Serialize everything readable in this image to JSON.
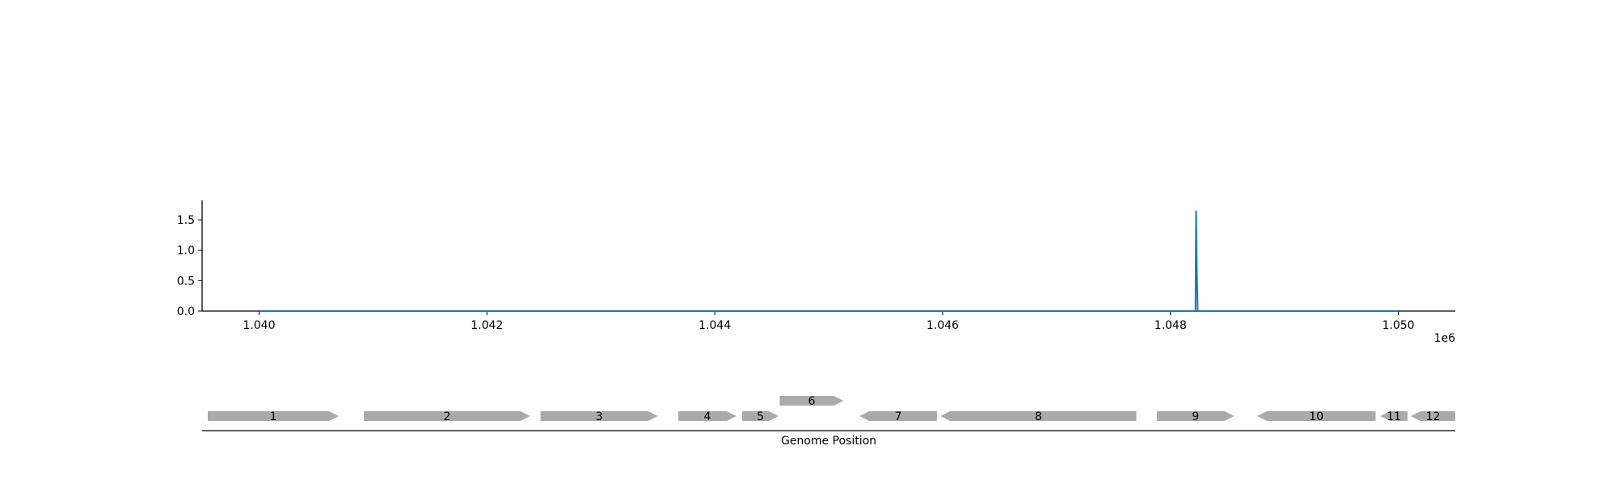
{
  "chart_data": [
    {
      "type": "line",
      "title": "",
      "xlabel": "",
      "ylabel": "",
      "x_offset_label": "1e6",
      "xlim": [
        1039500,
        1050500
      ],
      "ylim": [
        0,
        1.82
      ],
      "xticks": [
        1040000,
        1042000,
        1044000,
        1046000,
        1048000,
        1050000
      ],
      "xtick_labels": [
        "1.040",
        "1.042",
        "1.044",
        "1.046",
        "1.048",
        "1.050"
      ],
      "yticks": [
        0.0,
        0.5,
        1.0,
        1.5
      ],
      "ytick_labels": [
        "0.0",
        "0.5",
        "1.0",
        "1.5"
      ],
      "grid": false,
      "series": [
        {
          "color": "#1f77b4",
          "x": [
            1040000,
            1048220,
            1048225,
            1048230,
            1048235,
            1048240,
            1050000
          ],
          "y": [
            0,
            0,
            1.65,
            0.9,
            0.4,
            0,
            0
          ]
        }
      ]
    },
    {
      "type": "gene_map",
      "xlabel": "Genome Position",
      "gene_color": "#aaaaaa",
      "genes": [
        {
          "label": "1",
          "start": 1039550,
          "end": 1040700,
          "strand": "+",
          "row": 0
        },
        {
          "label": "2",
          "start": 1040920,
          "end": 1042380,
          "strand": "+",
          "row": 0
        },
        {
          "label": "3",
          "start": 1042470,
          "end": 1043500,
          "strand": "+",
          "row": 0
        },
        {
          "label": "4",
          "start": 1043680,
          "end": 1044190,
          "strand": "+",
          "row": 0
        },
        {
          "label": "5",
          "start": 1044240,
          "end": 1044560,
          "strand": "+",
          "row": 0
        },
        {
          "label": "6",
          "start": 1044570,
          "end": 1045130,
          "strand": "+",
          "row": 1
        },
        {
          "label": "7",
          "start": 1045270,
          "end": 1045950,
          "strand": "-",
          "row": 0
        },
        {
          "label": "8",
          "start": 1045980,
          "end": 1047700,
          "strand": "-",
          "row": 0
        },
        {
          "label": "9",
          "start": 1047880,
          "end": 1048560,
          "strand": "+",
          "row": 0
        },
        {
          "label": "10",
          "start": 1048760,
          "end": 1049800,
          "strand": "-",
          "row": 0
        },
        {
          "label": "11",
          "start": 1049840,
          "end": 1050080,
          "strand": "-",
          "row": 0
        },
        {
          "label": "12",
          "start": 1050110,
          "end": 1050500,
          "strand": "-",
          "row": 0
        }
      ]
    }
  ]
}
